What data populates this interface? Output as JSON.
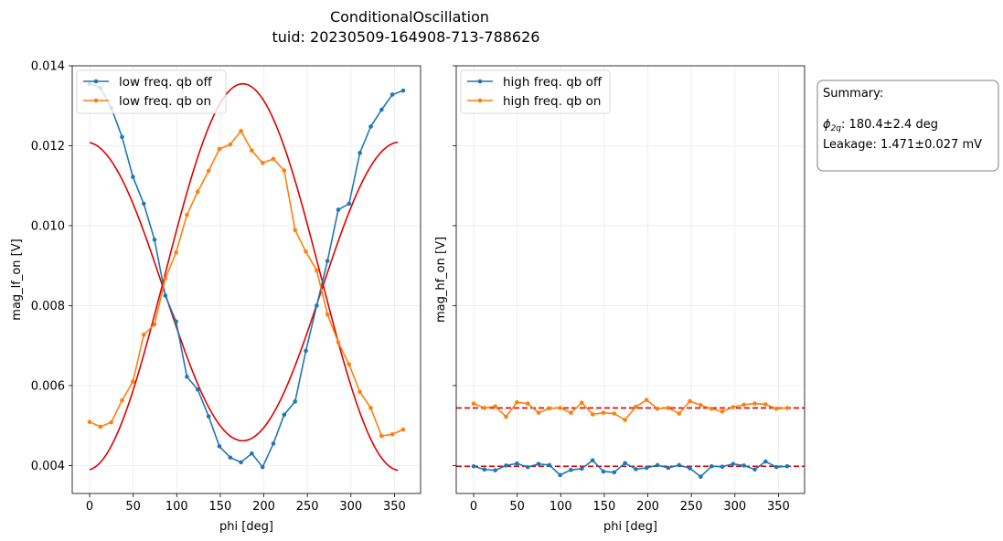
{
  "figure": {
    "title": "ConditionalOscillation",
    "subtitle": "tuid: 20230509-164908-713-788626"
  },
  "summary": {
    "heading": "Summary:",
    "phi_symbol": "ϕ",
    "phi_subscript": "2q",
    "phi_value": ": 180.4±2.4 deg",
    "leakage": "Leakage: 1.471±0.027 mV"
  },
  "colors": {
    "off": "#1f77b4",
    "on": "#ff7f0e",
    "fit": "#e00000",
    "grid": "#ebebeb"
  },
  "chart_data": [
    {
      "type": "line",
      "xlabel": "phi [deg]",
      "ylabel": "mag_lf_on [V]",
      "xlim": [
        -20,
        380
      ],
      "ylim": [
        0.0033,
        0.014
      ],
      "xticks": [
        0,
        50,
        100,
        150,
        200,
        250,
        300,
        350
      ],
      "yticks": [
        0.004,
        0.006,
        0.008,
        0.01,
        0.012,
        0.014
      ],
      "ytick_labels": [
        "0.004",
        "0.006",
        "0.008",
        "0.010",
        "0.012",
        "0.014"
      ],
      "grid": true,
      "legend_position": "upper-left",
      "x": [
        0,
        12.4,
        24.8,
        37.2,
        49.7,
        62.1,
        74.5,
        86.9,
        99.3,
        111.7,
        124.1,
        136.6,
        149,
        161.4,
        173.8,
        186.2,
        198.6,
        211,
        223.4,
        235.9,
        248.3,
        260.7,
        273.1,
        285.5,
        297.9,
        310.3,
        322.8,
        335.2,
        347.6,
        360
      ],
      "series": [
        {
          "name": "low freq. qb off",
          "color_key": "off",
          "values": [
            0.01355,
            0.01345,
            0.01295,
            0.01222,
            0.01122,
            0.01055,
            0.00965,
            0.00825,
            0.0076,
            0.00622,
            0.0059,
            0.00523,
            0.00448,
            0.0042,
            0.00408,
            0.0043,
            0.00396,
            0.00455,
            0.00527,
            0.0056,
            0.00687,
            0.008,
            0.00912,
            0.0104,
            0.01055,
            0.01182,
            0.01248,
            0.0129,
            0.01328,
            0.01338
          ]
        },
        {
          "name": "low freq. qb on",
          "color_key": "on",
          "values": [
            0.00509,
            0.00497,
            0.00508,
            0.00563,
            0.0061,
            0.00727,
            0.00753,
            0.00868,
            0.00933,
            0.01027,
            0.01085,
            0.01137,
            0.01192,
            0.01203,
            0.01237,
            0.01188,
            0.01157,
            0.01167,
            0.01138,
            0.00989,
            0.00935,
            0.00888,
            0.00778,
            0.00708,
            0.00653,
            0.00584,
            0.00544,
            0.00474,
            0.00478,
            0.0049
          ]
        }
      ],
      "fits": [
        {
          "name": "fit off",
          "offset": 0.008715,
          "amplitude": 0.004835,
          "phase_deg": 175.8,
          "x_range": [
            0,
            355
          ]
        },
        {
          "name": "fit on",
          "offset": 0.008355,
          "amplitude": -0.003735,
          "phase_deg": 175.8,
          "x_range": [
            0,
            355
          ]
        }
      ]
    },
    {
      "type": "line",
      "xlabel": "phi [deg]",
      "ylabel": "mag_hf_on [V]",
      "xlim": [
        -20,
        380
      ],
      "ylim": [
        0.0033,
        0.014
      ],
      "xticks": [
        0,
        50,
        100,
        150,
        200,
        250,
        300,
        350
      ],
      "grid": true,
      "legend_position": "upper-left",
      "x": [
        0,
        12.4,
        24.8,
        37.2,
        49.7,
        62.1,
        74.5,
        86.9,
        99.3,
        111.7,
        124.1,
        136.6,
        149,
        161.4,
        173.8,
        186.2,
        198.6,
        211,
        223.4,
        235.9,
        248.3,
        260.7,
        273.1,
        285.5,
        297.9,
        310.3,
        322.8,
        335.2,
        347.6,
        360
      ],
      "series": [
        {
          "name": "high freq. qb off",
          "color_key": "off",
          "values": [
            0.00398,
            0.0039,
            0.00388,
            0.004,
            0.00405,
            0.00396,
            0.00404,
            0.00401,
            0.00376,
            0.00389,
            0.00392,
            0.00413,
            0.00385,
            0.00383,
            0.00406,
            0.00391,
            0.00394,
            0.00401,
            0.00394,
            0.00401,
            0.00393,
            0.00372,
            0.00398,
            0.00397,
            0.00404,
            0.004,
            0.0039,
            0.0041,
            0.00396,
            0.00398
          ]
        },
        {
          "name": "high freq. qb on",
          "color_key": "on",
          "values": [
            0.00555,
            0.00544,
            0.00548,
            0.00522,
            0.00558,
            0.00555,
            0.00532,
            0.00543,
            0.00544,
            0.00532,
            0.00557,
            0.00528,
            0.00532,
            0.0053,
            0.00514,
            0.00547,
            0.00564,
            0.00542,
            0.00544,
            0.0053,
            0.00561,
            0.00551,
            0.00542,
            0.00535,
            0.00546,
            0.00552,
            0.00555,
            0.00553,
            0.00542,
            0.00544
          ]
        }
      ],
      "hlines": [
        {
          "y": 0.00544,
          "style": "dashed"
        },
        {
          "y": 0.00398,
          "style": "dashed"
        }
      ]
    }
  ]
}
